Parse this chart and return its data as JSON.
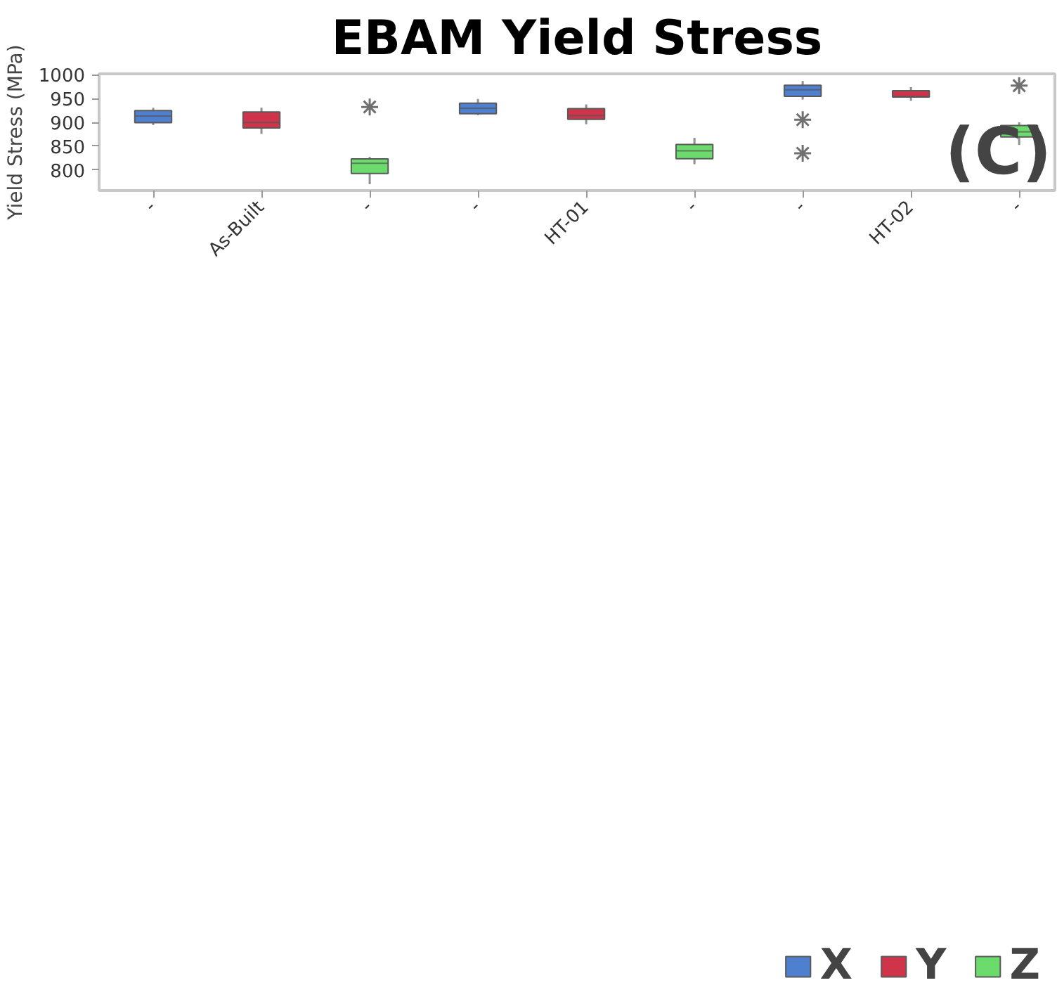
{
  "chart_data": {
    "type": "box",
    "title": "EBAM Yield Stress",
    "ylabel": "Yield Stress (MPa)",
    "categories": [
      "-",
      "As-Built",
      "-",
      "-",
      "HT-01",
      "-",
      "-",
      "HT-02",
      "-"
    ],
    "ylim": [
      757,
      1002
    ],
    "yticks": [
      800,
      850,
      900,
      950,
      1000
    ],
    "grid": false,
    "legend": "bottom",
    "marker": "star",
    "annotations": [
      "(C)"
    ],
    "series": [
      {
        "name": "X",
        "color": "#4f7fcf",
        "boxes": [
          {
            "low": 894.5,
            "q1": 899.6,
            "median": 913.5,
            "q3": 925,
            "high": 930.7
          },
          null,
          null,
          {
            "low": 915.1,
            "q1": 918.3,
            "median": 929.8,
            "q3": 940.3,
            "high": 949.2
          },
          null,
          null,
          {
            "low": 947.9,
            "q1": 954.6,
            "median": 968.5,
            "q3": 978,
            "high": 987,
            "outliers": [
              905.7,
              835.3
            ]
          },
          null,
          null
        ]
      },
      {
        "name": "Y",
        "color": "#d0344a",
        "boxes": [
          null,
          {
            "low": 876,
            "q1": 888.5,
            "median": 899.8,
            "q3": 921.8,
            "high": 931
          },
          null,
          null,
          {
            "low": 896.2,
            "q1": 906.3,
            "median": 914.5,
            "q3": 928.8,
            "high": 937.8
          },
          null,
          null,
          {
            "low": 945.4,
            "q1": 953.4,
            "median": 954,
            "q3": 966.4,
            "high": 974
          },
          null
        ]
      },
      {
        "name": "Z",
        "color": "#6bdc6b",
        "boxes": [
          null,
          null,
          {
            "low": 770.4,
            "q1": 792.7,
            "median": 814.3,
            "q3": 823.3,
            "high": 827.7,
            "outliers": [
              932.4
            ]
          },
          null,
          null,
          {
            "low": 812.2,
            "q1": 823.7,
            "median": 840.5,
            "q3": 853.8,
            "high": 867.6
          },
          null,
          null,
          {
            "low": 852.7,
            "q1": 869.7,
            "median": 880.2,
            "q3": 893.5,
            "high": 900.2,
            "outliers": [
              977.1
            ]
          }
        ]
      }
    ]
  }
}
